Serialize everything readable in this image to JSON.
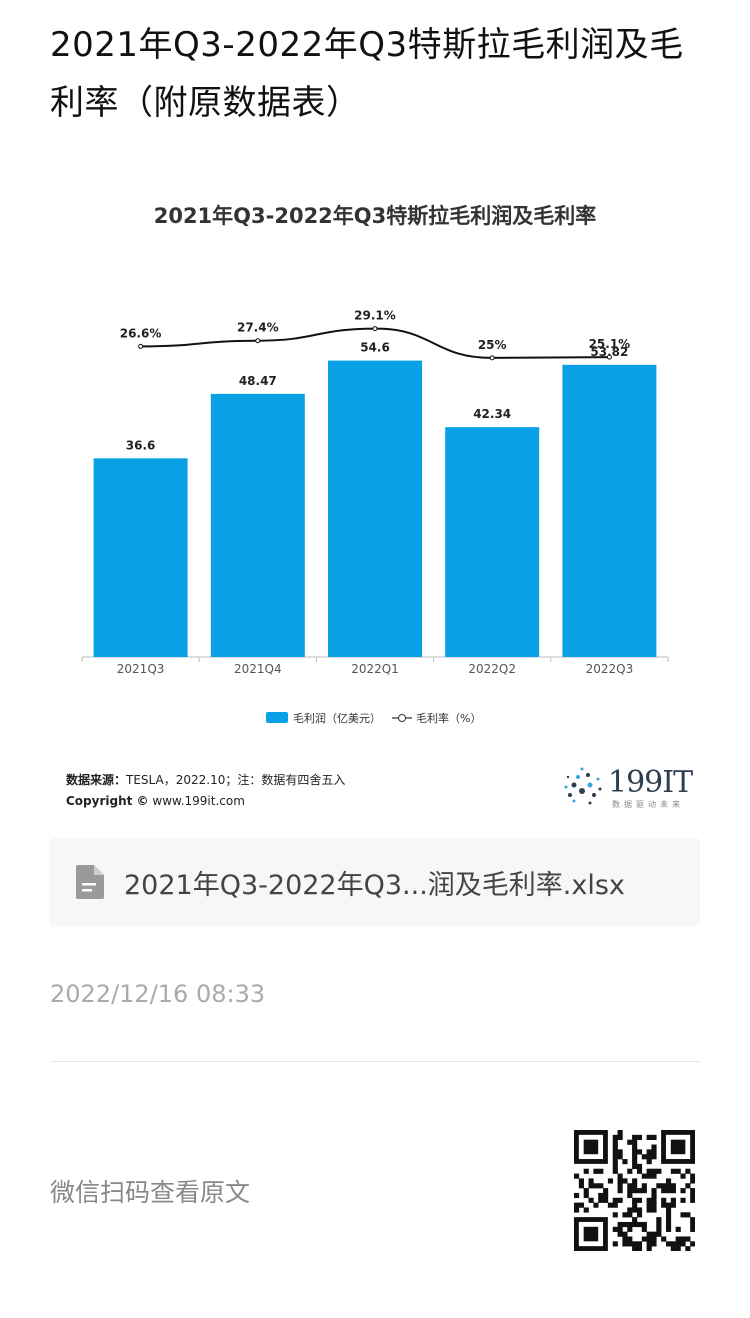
{
  "article": {
    "title": "2021年Q3-2022年Q3特斯拉毛利润及毛利率（附原数据表）",
    "attachment_name": "2021年Q3-2022年Q3...润及毛利率.xlsx",
    "timestamp": "2022/12/16 08:33",
    "qr_label": "微信扫码查看原文"
  },
  "chart_data": {
    "type": "bar",
    "title": "2021年Q3-2022年Q3特斯拉毛利润及毛利率",
    "categories": [
      "2021Q3",
      "2021Q4",
      "2022Q1",
      "2022Q2",
      "2022Q3"
    ],
    "series": [
      {
        "name": "毛利润（亿美元）",
        "type": "bar",
        "values": [
          36.6,
          48.47,
          54.6,
          42.34,
          53.82
        ],
        "labels": [
          "36.6",
          "48.47",
          "54.6",
          "42.34",
          "53.82"
        ],
        "color": "#0aa0e6"
      },
      {
        "name": "毛利率（%）",
        "type": "line",
        "values": [
          26.6,
          27.4,
          29.1,
          25,
          25.1
        ],
        "labels": [
          "26.6%",
          "27.4%",
          "29.1%",
          "25%",
          "25.1%"
        ],
        "color": "#111111"
      }
    ],
    "legend_position": "bottom",
    "grid": false
  },
  "chart_footer": {
    "source_label": "数据来源：",
    "source_text": "TESLA，2022.10；注：数据有四舍五入",
    "copyright_label": "Copyright ©",
    "copyright_text": "www.199it.com",
    "logo_text": "199IT",
    "logo_sub": "数据驱动未来"
  },
  "icons": {
    "file": "file-icon",
    "qr": "qr-code-icon"
  }
}
